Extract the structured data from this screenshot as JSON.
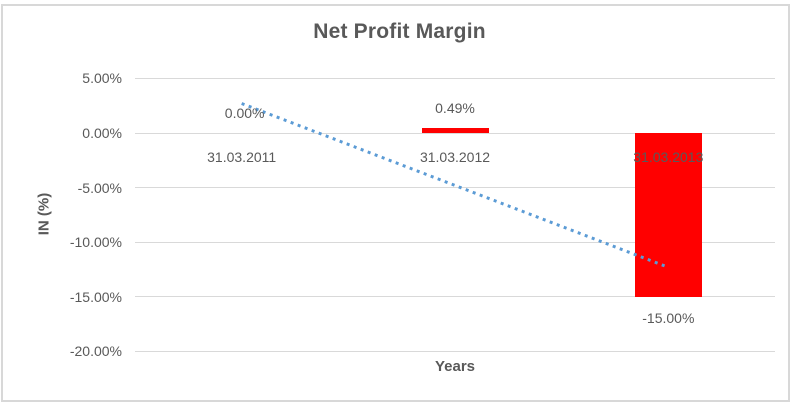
{
  "chart_data": {
    "type": "bar",
    "title": "Net Profit Margin",
    "xlabel": "Years",
    "ylabel": "IN (%)",
    "categories": [
      "31.03.2011",
      "31.03.2012",
      "31.03.2013"
    ],
    "values": [
      0,
      0.49,
      -15
    ],
    "data_labels": [
      "0.00%",
      "0.49%",
      "-15.00%"
    ],
    "y_ticks": [
      "5.00%",
      "0.00%",
      "-5.00%",
      "-10.00%",
      "-15.00%",
      "-20.00%"
    ],
    "y_tick_values": [
      5,
      0,
      -5,
      -10,
      -15,
      -20
    ],
    "ylim": [
      -20,
      5
    ],
    "grid": true,
    "legend": "none",
    "trendline": {
      "type": "linear",
      "style": "dotted",
      "start_value": 2.7,
      "end_value": -12.3
    },
    "colors": {
      "bar": "#FF0000",
      "trendline": "#5B9BD5",
      "text": "#595959",
      "gridline": "#D9D9D9",
      "border": "#D8D8D8"
    }
  }
}
